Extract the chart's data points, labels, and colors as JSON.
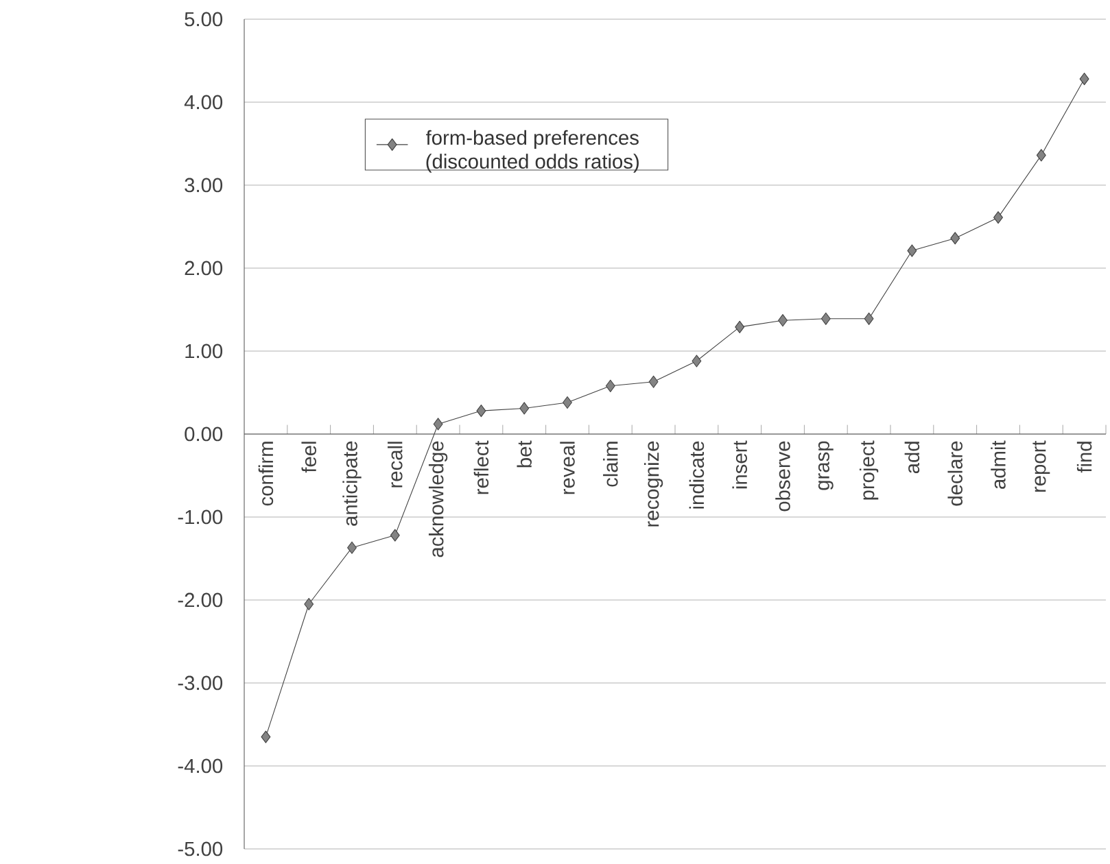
{
  "chart_data": {
    "type": "line",
    "categories": [
      "confirm",
      "feel",
      "anticipate",
      "recall",
      "acknowledge",
      "reflect",
      "bet",
      "reveal",
      "claim",
      "recognize",
      "indicate",
      "insert",
      "observe",
      "grasp",
      "project",
      "add",
      "declare",
      "admit",
      "report",
      "find"
    ],
    "series": [
      {
        "name": "form-based preferences (discounted odds ratios)",
        "color": "#404040",
        "values": [
          -3.65,
          -2.05,
          -1.37,
          -1.22,
          0.12,
          0.28,
          0.31,
          0.38,
          0.58,
          0.63,
          0.88,
          1.29,
          1.37,
          1.39,
          1.39,
          2.21,
          2.36,
          2.61,
          3.36,
          4.28
        ]
      }
    ],
    "ylim": [
      -5,
      5
    ],
    "yticks": [
      {
        "value": -5,
        "label": "-5.00"
      },
      {
        "value": -4,
        "label": "-4.00"
      },
      {
        "value": -3,
        "label": "-3.00"
      },
      {
        "value": -2,
        "label": "-2.00"
      },
      {
        "value": -1,
        "label": "-1.00"
      },
      {
        "value": 0,
        "label": "0.00"
      },
      {
        "value": 1,
        "label": "1.00"
      },
      {
        "value": 2,
        "label": "2.00"
      },
      {
        "value": 3,
        "label": "3.00"
      },
      {
        "value": 4,
        "label": "4.00"
      },
      {
        "value": 5,
        "label": "5.00"
      }
    ],
    "grid": "y",
    "legend": "top left",
    "marker": "diamond",
    "line_style": "solid"
  }
}
